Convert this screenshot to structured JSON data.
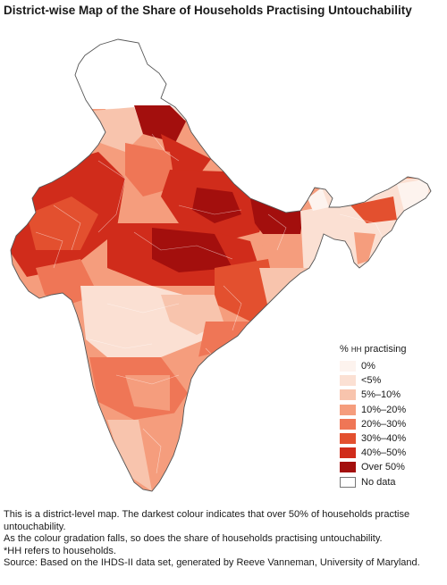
{
  "title": "District-wise Map of the Share of Households Practising Untouchability",
  "legend": {
    "heading_prefix": "% ",
    "heading_small": "HH",
    "heading_suffix": " practising",
    "items": [
      {
        "label": "0%",
        "color": "#fdf3ee"
      },
      {
        "label": "<5%",
        "color": "#fbe0d3"
      },
      {
        "label": "5%–10%",
        "color": "#f8c4ad"
      },
      {
        "label": "10%–20%",
        "color": "#f59d7d"
      },
      {
        "label": "20%–30%",
        "color": "#ef7656"
      },
      {
        "label": "30%–40%",
        "color": "#e3502f"
      },
      {
        "label": "40%–50%",
        "color": "#d02c1b"
      },
      {
        "label": "Over 50%",
        "color": "#a30f0d"
      },
      {
        "label": "No data",
        "color": "#ffffff"
      }
    ]
  },
  "caption": {
    "line1": "This is a district-level map. The darkest colour indicates that over 50% of households practise untouchability.",
    "line2": "As the colour gradation falls, so does the share of households practising untouchability.",
    "line3": "*HH refers to households.",
    "line4": "Source: Based on the IHDS-II data set, generated by Reeve Vanneman, University of Maryland."
  }
}
